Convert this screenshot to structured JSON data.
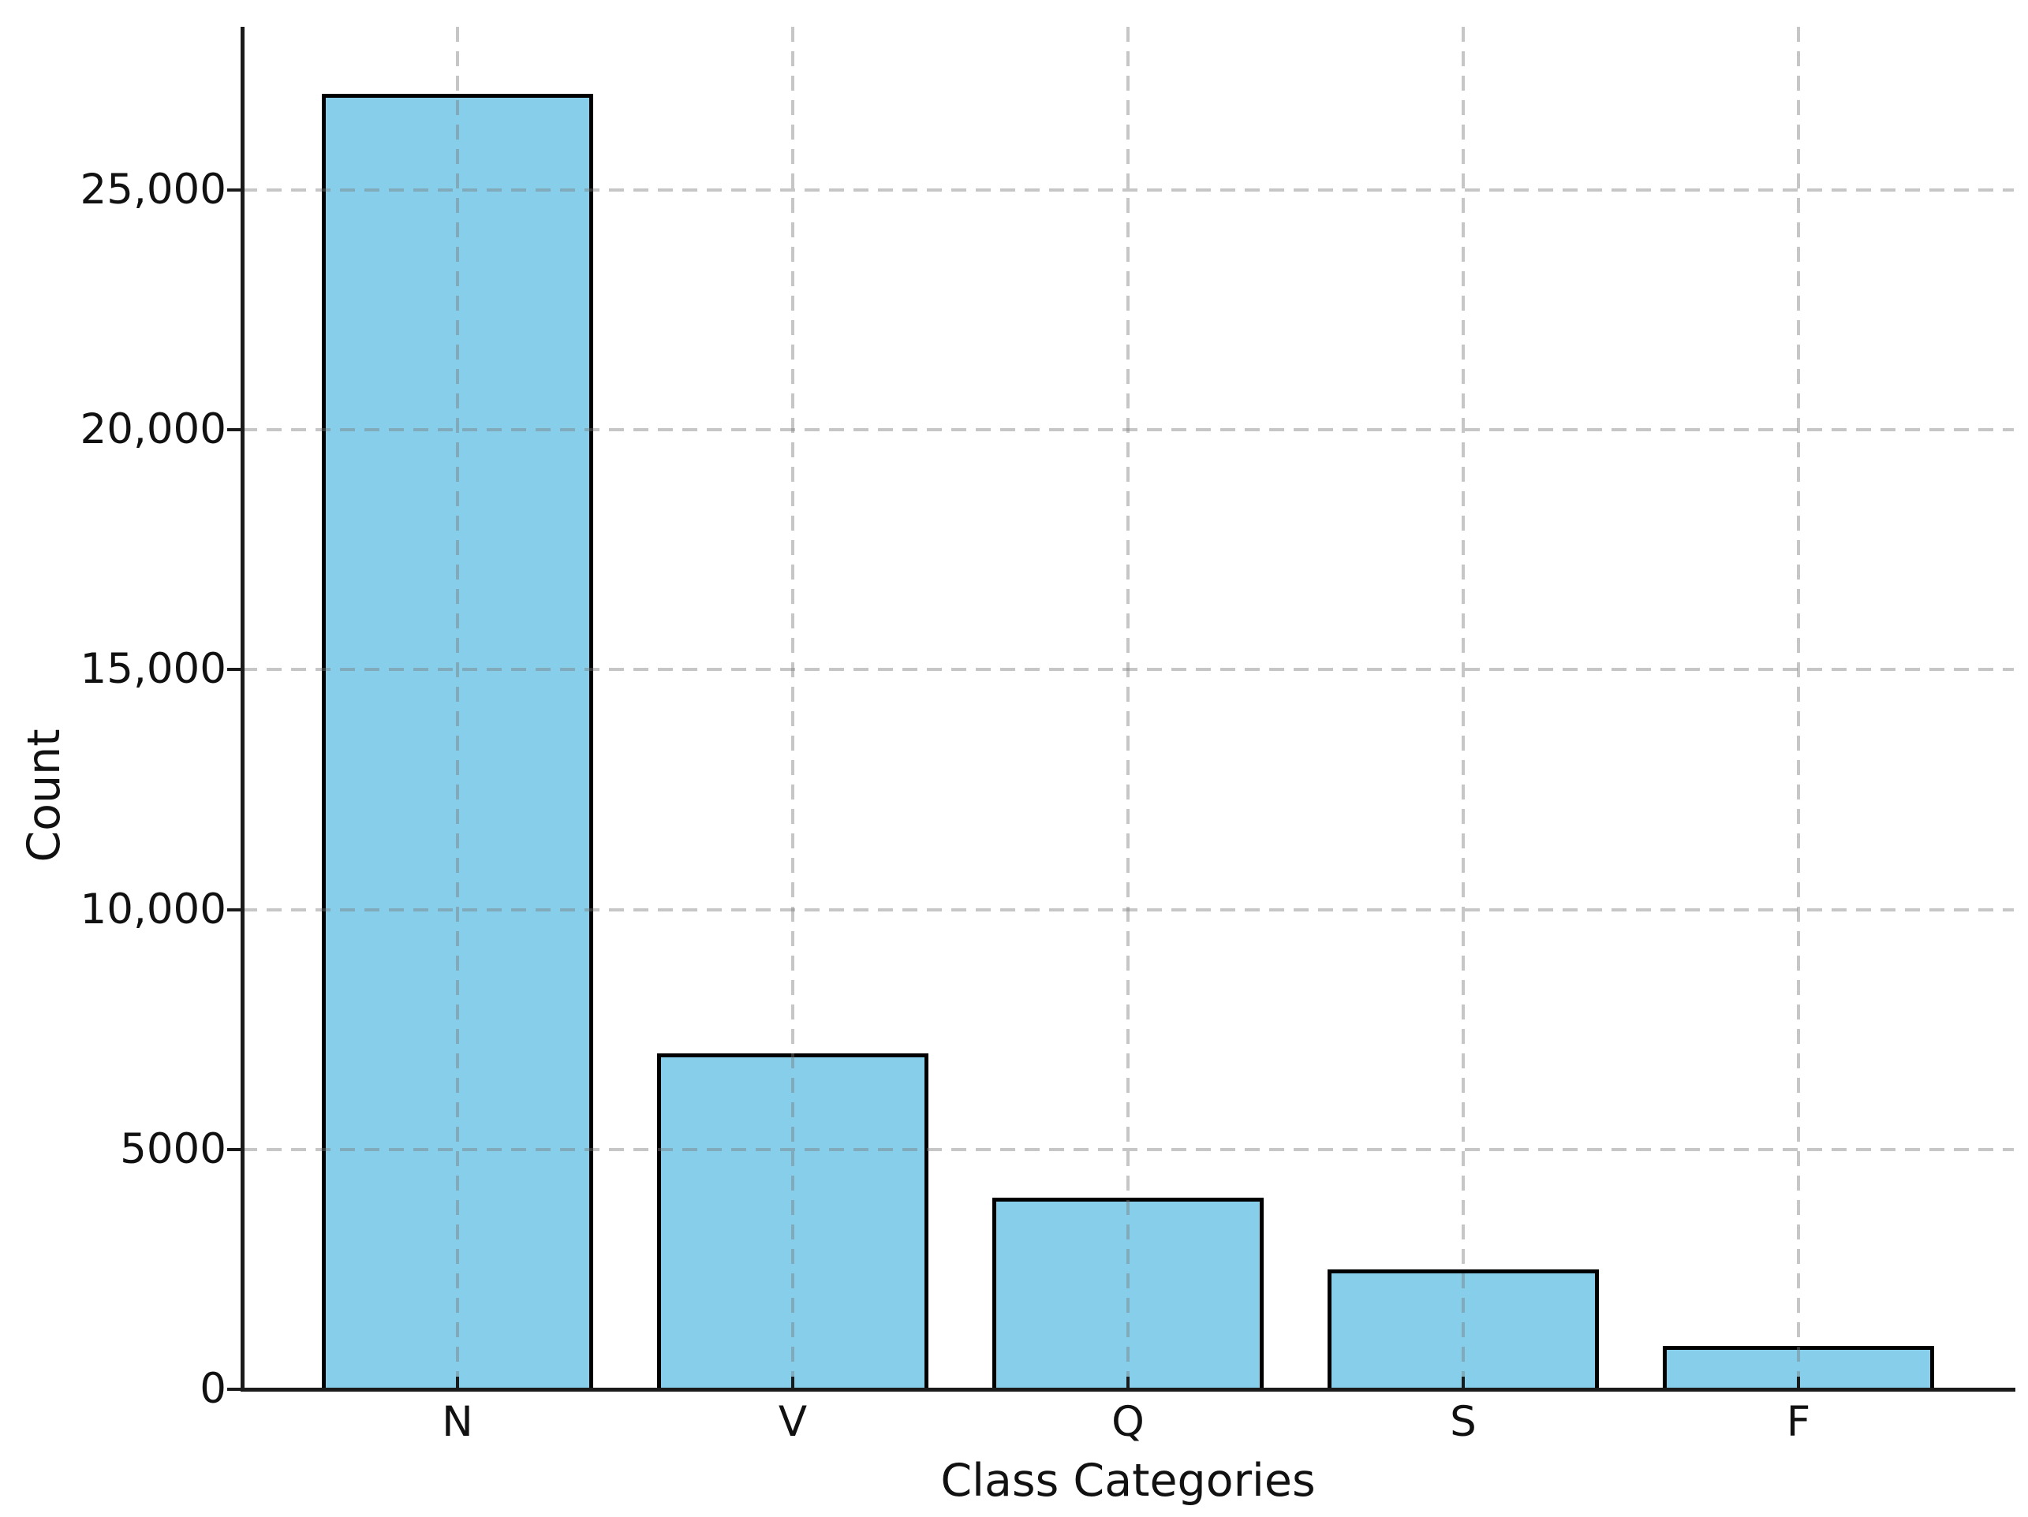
{
  "figure": {
    "background": "#ffffff",
    "title": ""
  },
  "chart_data": {
    "type": "bar",
    "title": "",
    "xlabel": "Class Categories",
    "ylabel": "Count",
    "categories": [
      "N",
      "V",
      "Q",
      "S",
      "F"
    ],
    "values": [
      27000,
      7000,
      4000,
      2500,
      900
    ],
    "ylim": [
      0,
      28400
    ],
    "yticks": [
      0,
      5000,
      10000,
      15000,
      20000,
      25000
    ],
    "ytick_labels": [
      "0",
      "5000",
      "10,000",
      "15,000",
      "20,000",
      "25,000"
    ],
    "grid": {
      "visible": true,
      "style": "dashed",
      "axes": "both",
      "drawn_over_bars": true
    },
    "legend": "none",
    "colors": {
      "bar_fill": "#87CEEB",
      "bar_edge": "#000000",
      "grid_line": "#cccccc",
      "axis_and_text": "#111111"
    }
  }
}
